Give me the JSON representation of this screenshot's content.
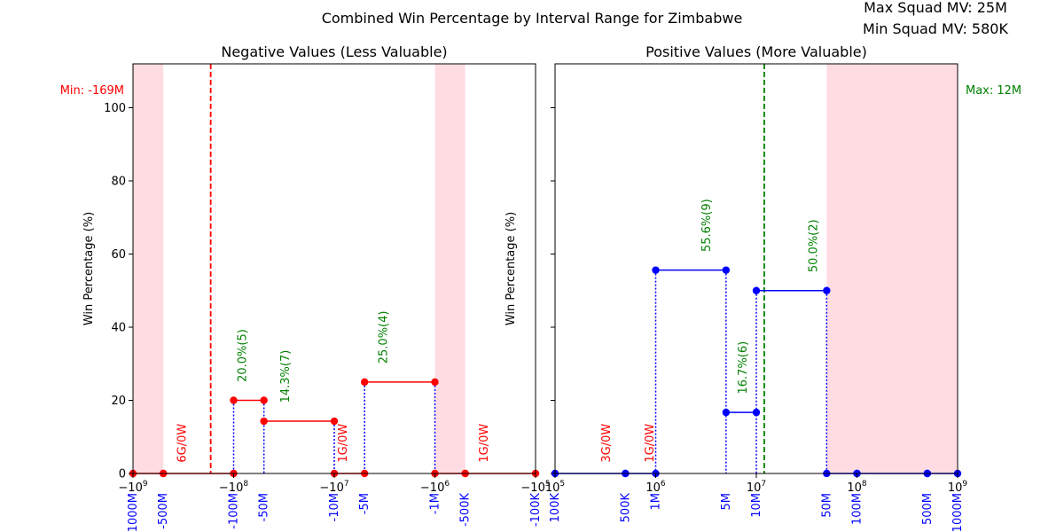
{
  "figure": {
    "title": "Combined Win Percentage by Interval Range for Zimbabwe",
    "max_squad_mv": "Max Squad MV: 25M",
    "min_squad_mv": "Min Squad MV: 580K"
  },
  "colors": {
    "negative": "#ff0000",
    "positive": "#0000ff",
    "annotation_green": "#008000",
    "shade": "#ffc0cb"
  },
  "chart_data": [
    {
      "type": "line",
      "title": "Negative Values (Less Valuable)",
      "ylabel": "Win Percentage (%)",
      "xscale": "symlog",
      "xlim": [
        -1000000000,
        -100000
      ],
      "ylim": [
        0,
        112
      ],
      "y_ticks": [
        0,
        20,
        40,
        60,
        80,
        100
      ],
      "x_major_ticks": [
        {
          "value": -1000000000,
          "label": "−10",
          "exp": "9"
        },
        {
          "value": -100000000,
          "label": "−10",
          "exp": "8"
        },
        {
          "value": -10000000,
          "label": "−10",
          "exp": "7"
        },
        {
          "value": -1000000,
          "label": "−10",
          "exp": "6"
        },
        {
          "value": -100000,
          "label": "−10",
          "exp": "5"
        }
      ],
      "x_interval_labels": [
        {
          "value": -1000000000,
          "label": "-1000M"
        },
        {
          "value": -500000000,
          "label": "-500M"
        },
        {
          "value": -100000000,
          "label": "-100M"
        },
        {
          "value": -50000000,
          "label": "-50M"
        },
        {
          "value": -10000000,
          "label": "-10M"
        },
        {
          "value": -5000000,
          "label": "-5M"
        },
        {
          "value": -1000000,
          "label": "-1M"
        },
        {
          "value": -500000,
          "label": "-500K"
        },
        {
          "value": -100000,
          "label": "-100K"
        }
      ],
      "shaded_ranges": [
        [
          -1000000000,
          -500000000
        ],
        [
          -1000000,
          -500000
        ]
      ],
      "reference_line": {
        "value": -169000000,
        "label": "Min: -169M",
        "color": "#ff0000"
      },
      "segments": [
        {
          "x0": -1000000000,
          "x1": -500000000,
          "y": 0
        },
        {
          "x0": -500000000,
          "x1": -100000000,
          "y": 0
        },
        {
          "x0": -100000000,
          "x1": -50000000,
          "y": 20
        },
        {
          "x0": -50000000,
          "x1": -10000000,
          "y": 14.3
        },
        {
          "x0": -10000000,
          "x1": -5000000,
          "y": 0
        },
        {
          "x0": -5000000,
          "x1": -1000000,
          "y": 25
        },
        {
          "x0": -1000000,
          "x1": -500000,
          "y": 0
        },
        {
          "x0": -500000,
          "x1": -100000,
          "y": 0
        }
      ],
      "annotations": [
        {
          "x": -300000000,
          "y": 3,
          "text": "6G/0W",
          "color": "#ff0000"
        },
        {
          "x": -75000000,
          "y": 25,
          "text": "20.0%(5)",
          "color": "#008000"
        },
        {
          "x": -28000000,
          "y": 19.3,
          "text": "14.3%(7)",
          "color": "#008000"
        },
        {
          "x": -7500000,
          "y": 3,
          "text": "1G/0W",
          "color": "#ff0000"
        },
        {
          "x": -3000000,
          "y": 30,
          "text": "25.0%(4)",
          "color": "#008000"
        },
        {
          "x": -300000,
          "y": 3,
          "text": "1G/0W",
          "color": "#ff0000"
        }
      ]
    },
    {
      "type": "line",
      "title": "Positive Values (More Valuable)",
      "ylabel": "Win Percentage (%)",
      "xscale": "log",
      "xlim": [
        100000,
        1000000000
      ],
      "ylim": [
        0,
        112
      ],
      "y_ticks": [
        0,
        20,
        40,
        60,
        80,
        100
      ],
      "x_major_ticks": [
        {
          "value": 100000,
          "label": "10",
          "exp": "5"
        },
        {
          "value": 1000000,
          "label": "10",
          "exp": "6"
        },
        {
          "value": 10000000,
          "label": "10",
          "exp": "7"
        },
        {
          "value": 100000000,
          "label": "10",
          "exp": "8"
        },
        {
          "value": 1000000000,
          "label": "10",
          "exp": "9"
        }
      ],
      "x_interval_labels": [
        {
          "value": 100000,
          "label": "100K"
        },
        {
          "value": 500000,
          "label": "500K"
        },
        {
          "value": 1000000,
          "label": "1M"
        },
        {
          "value": 5000000,
          "label": "5M"
        },
        {
          "value": 10000000,
          "label": "10M"
        },
        {
          "value": 50000000,
          "label": "50M"
        },
        {
          "value": 100000000,
          "label": "100M"
        },
        {
          "value": 500000000,
          "label": "500M"
        },
        {
          "value": 1000000000,
          "label": "1000M"
        }
      ],
      "shaded_ranges": [
        [
          50000000,
          100000000
        ],
        [
          100000000,
          500000000
        ],
        [
          500000000,
          1000000000
        ]
      ],
      "reference_line": {
        "value": 12000000,
        "label": "Max: 12M",
        "color": "#008000"
      },
      "segments": [
        {
          "x0": 100000,
          "x1": 500000,
          "y": 0
        },
        {
          "x0": 500000,
          "x1": 1000000,
          "y": 0
        },
        {
          "x0": 1000000,
          "x1": 5000000,
          "y": 55.6
        },
        {
          "x0": 5000000,
          "x1": 10000000,
          "y": 16.7
        },
        {
          "x0": 10000000,
          "x1": 50000000,
          "y": 50
        },
        {
          "x0": 50000000,
          "x1": 100000000,
          "y": 0
        },
        {
          "x0": 100000000,
          "x1": 500000000,
          "y": 0
        },
        {
          "x0": 500000000,
          "x1": 1000000000,
          "y": 0
        }
      ],
      "annotations": [
        {
          "x": 350000,
          "y": 3,
          "text": "3G/0W",
          "color": "#ff0000"
        },
        {
          "x": 950000,
          "y": 3,
          "text": "1G/0W",
          "color": "#ff0000"
        },
        {
          "x": 3500000,
          "y": 60.6,
          "text": "55.6%(9)",
          "color": "#008000"
        },
        {
          "x": 8000000,
          "y": 21.7,
          "text": "16.7%(6)",
          "color": "#008000"
        },
        {
          "x": 40000000,
          "y": 55,
          "text": "50.0%(2)",
          "color": "#008000"
        }
      ]
    }
  ]
}
